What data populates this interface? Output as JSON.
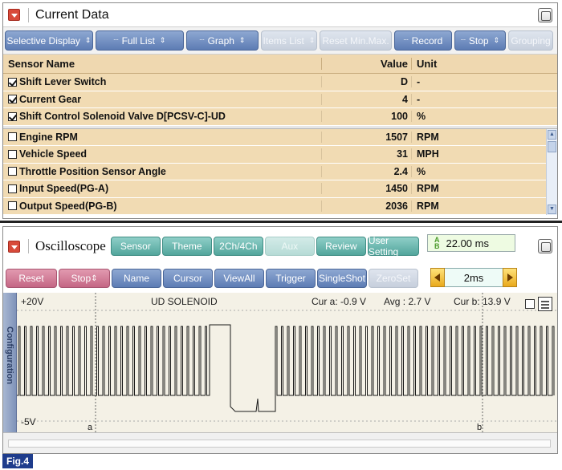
{
  "current_data": {
    "title": "Current Data",
    "toolbar": [
      {
        "label": "Selective Display",
        "dots": false,
        "arrow": true,
        "disabled": false,
        "w": 110
      },
      {
        "label": "Full List",
        "dots": true,
        "arrow": true,
        "disabled": false,
        "w": 110
      },
      {
        "label": "Graph",
        "dots": true,
        "arrow": true,
        "disabled": false,
        "w": 90
      },
      {
        "label": "Items List",
        "dots": false,
        "arrow": true,
        "disabled": true,
        "w": 70
      },
      {
        "label": "Reset Min.Max.",
        "dots": false,
        "arrow": false,
        "disabled": true,
        "w": 90
      },
      {
        "label": "Record",
        "dots": true,
        "arrow": false,
        "disabled": false,
        "w": 72
      },
      {
        "label": "Stop",
        "dots": true,
        "arrow": true,
        "disabled": false,
        "w": 64
      },
      {
        "label": "Grouping",
        "dots": false,
        "arrow": false,
        "disabled": true,
        "w": 56
      }
    ],
    "columns": {
      "name": "Sensor Name",
      "value": "Value",
      "unit": "Unit"
    },
    "selected_rows": [
      {
        "name": "Shift Lever Switch",
        "value": "D",
        "unit": "-",
        "checked": true
      },
      {
        "name": "Current Gear",
        "value": "4",
        "unit": "-",
        "checked": true
      },
      {
        "name": "Shift Control Solenoid Valve D[PCSV-C]-UD",
        "value": "100",
        "unit": "%",
        "checked": true
      }
    ],
    "rows": [
      {
        "name": "Engine RPM",
        "value": "1507",
        "unit": "RPM",
        "checked": false
      },
      {
        "name": "Vehicle Speed",
        "value": "31",
        "unit": "MPH",
        "checked": false
      },
      {
        "name": "Throttle Position Sensor Angle",
        "value": "2.4",
        "unit": "%",
        "checked": false
      },
      {
        "name": "Input Speed(PG-A)",
        "value": "1450",
        "unit": "RPM",
        "checked": false
      },
      {
        "name": "Output Speed(PG-B)",
        "value": "2036",
        "unit": "RPM",
        "checked": false
      }
    ]
  },
  "oscilloscope": {
    "title": "Oscilloscope",
    "mode_buttons": [
      {
        "label": "Sensor",
        "disabled": false,
        "w": 62
      },
      {
        "label": "Theme",
        "disabled": false,
        "w": 62
      },
      {
        "label": "2Ch/4Ch",
        "disabled": false,
        "w": 62
      },
      {
        "label": "Aux",
        "disabled": true,
        "w": 62
      },
      {
        "label": "Review",
        "disabled": false,
        "w": 62
      },
      {
        "label": "User Setting",
        "disabled": false,
        "w": 64
      }
    ],
    "time_readout": "22.00 ms",
    "time_icon": "ab-cursor-icon",
    "control_buttons": [
      {
        "label": "Reset",
        "style": "pink",
        "arrow": false,
        "disabled": false,
        "w": 64
      },
      {
        "label": "Stop",
        "style": "pink",
        "arrow": true,
        "disabled": false,
        "w": 64
      },
      {
        "label": "Name",
        "style": "blue",
        "arrow": false,
        "disabled": false,
        "w": 62
      },
      {
        "label": "Cursor",
        "style": "blue",
        "arrow": false,
        "disabled": false,
        "w": 62
      },
      {
        "label": "ViewAll",
        "style": "blue",
        "arrow": false,
        "disabled": false,
        "w": 62
      },
      {
        "label": "Trigger",
        "style": "blue",
        "arrow": false,
        "disabled": false,
        "w": 62
      },
      {
        "label": "SingleShot",
        "style": "blue",
        "arrow": false,
        "disabled": false,
        "w": 62
      },
      {
        "label": "ZeroSet",
        "style": "blue",
        "arrow": false,
        "disabled": true,
        "w": 62
      }
    ],
    "time_div": "2ms",
    "config_tab": "Configuration",
    "channel_name": "UD SOLENOID",
    "vmax": "+20V",
    "vmin": "-5V",
    "cursor_a": "Cur a: -0.9 V",
    "avg": "Avg : 2.7 V",
    "cursor_b": "Cur b: 13.9 V",
    "marker_a": "a",
    "marker_b": "b"
  },
  "figure_label": "Fig.4"
}
